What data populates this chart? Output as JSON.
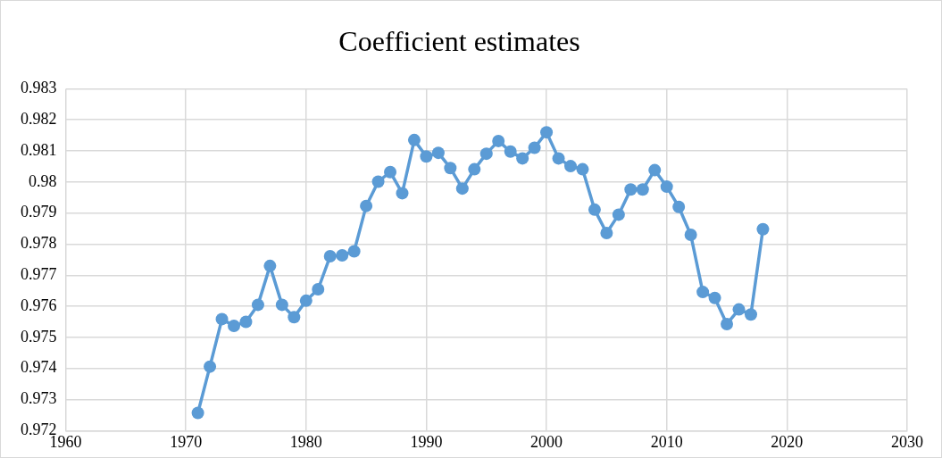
{
  "chart_data": {
    "type": "line",
    "title": "Coefficient estimates",
    "x": [
      1971,
      1972,
      1973,
      1974,
      1975,
      1976,
      1977,
      1978,
      1979,
      1980,
      1981,
      1982,
      1983,
      1984,
      1985,
      1986,
      1987,
      1988,
      1989,
      1990,
      1991,
      1992,
      1993,
      1994,
      1995,
      1996,
      1997,
      1998,
      1999,
      2000,
      2001,
      2002,
      2003,
      2004,
      2005,
      2006,
      2007,
      2008,
      2009,
      2010,
      2011,
      2012,
      2013,
      2014,
      2015,
      2016,
      2017,
      2018
    ],
    "series": [
      {
        "color": "#5b9bd5",
        "values": [
          0.97257,
          0.97406,
          0.97559,
          0.97537,
          0.9755,
          0.97605,
          0.9773,
          0.97605,
          0.97565,
          0.97618,
          0.97655,
          0.97761,
          0.97764,
          0.97777,
          0.97923,
          0.98001,
          0.98032,
          0.97964,
          0.98135,
          0.98082,
          0.98094,
          0.98045,
          0.97979,
          0.98041,
          0.98091,
          0.98132,
          0.98098,
          0.98076,
          0.9811,
          0.9816,
          0.98076,
          0.98051,
          0.98041,
          0.97911,
          0.97836,
          0.97895,
          0.97976,
          0.97976,
          0.98038,
          0.97985,
          0.9792,
          0.9783,
          0.97646,
          0.97627,
          0.97543,
          0.9759,
          0.97574,
          0.97848
        ]
      }
    ],
    "xlim": [
      1960,
      2030
    ],
    "xticks": [
      1960,
      1970,
      1980,
      1990,
      2000,
      2010,
      2020,
      2030
    ],
    "ylim": [
      0.972,
      0.983
    ],
    "yticks": [
      0.972,
      0.973,
      0.974,
      0.975,
      0.976,
      0.977,
      0.978,
      0.979,
      0.98,
      0.981,
      0.982,
      0.983
    ],
    "grid": true,
    "legend": false,
    "marker": "circle",
    "line_style": "solid"
  }
}
